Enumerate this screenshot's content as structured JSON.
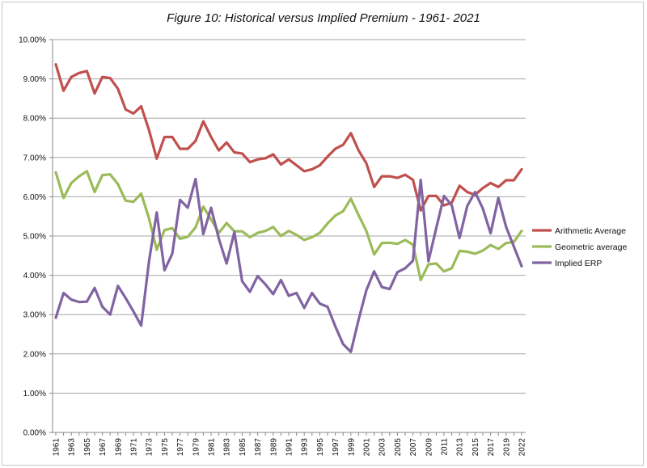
{
  "chart_data": {
    "type": "line",
    "title": "Figure 10: Historical versus Implied Premium - 1961- 2021",
    "xlabel": "",
    "ylabel": "",
    "ylim": [
      0,
      10
    ],
    "yticks": [
      "0.00%",
      "1.00%",
      "2.00%",
      "3.00%",
      "4.00%",
      "5.00%",
      "6.00%",
      "7.00%",
      "8.00%",
      "9.00%",
      "10.00%"
    ],
    "grid": true,
    "legend_position": "right",
    "categories": [
      "1961",
      "1962",
      "1963",
      "1964",
      "1965",
      "1966",
      "1967",
      "1968",
      "1969",
      "1970",
      "1971",
      "1972",
      "1973",
      "1974",
      "1975",
      "1976",
      "1977",
      "1978",
      "1979",
      "1980",
      "1981",
      "1982",
      "1983",
      "1984",
      "1985",
      "1986",
      "1987",
      "1988",
      "1989",
      "1990",
      "1991",
      "1992",
      "1993",
      "1994",
      "1995",
      "1996",
      "1997",
      "1998",
      "1999",
      "2000",
      "2001",
      "2002",
      "2003",
      "2004",
      "2005",
      "2006",
      "2007",
      "2008",
      "2009",
      "2010",
      "2011",
      "2012",
      "2013",
      "2014",
      "2015",
      "2016",
      "2017",
      "2018",
      "2019",
      "2020",
      "2022"
    ],
    "series": [
      {
        "name": "Arithmetic Average",
        "color": "#c0504d",
        "values": [
          9.37,
          8.7,
          9.05,
          9.15,
          9.2,
          8.63,
          9.05,
          9.02,
          8.75,
          8.22,
          8.12,
          8.3,
          7.7,
          6.97,
          7.52,
          7.52,
          7.22,
          7.22,
          7.42,
          7.92,
          7.52,
          7.18,
          7.38,
          7.13,
          7.1,
          6.88,
          6.95,
          6.98,
          7.08,
          6.82,
          6.95,
          6.8,
          6.65,
          6.7,
          6.8,
          7.02,
          7.22,
          7.32,
          7.62,
          7.18,
          6.85,
          6.25,
          6.52,
          6.52,
          6.48,
          6.56,
          6.43,
          5.65,
          6.02,
          6.02,
          5.78,
          5.85,
          6.28,
          6.12,
          6.05,
          6.22,
          6.35,
          6.25,
          6.42,
          6.42,
          6.7
        ]
      },
      {
        "name": "Geometric average",
        "color": "#9bbb59",
        "values": [
          6.62,
          5.97,
          6.35,
          6.52,
          6.65,
          6.12,
          6.55,
          6.57,
          6.32,
          5.9,
          5.87,
          6.08,
          5.45,
          4.65,
          5.15,
          5.2,
          4.93,
          4.98,
          5.22,
          5.75,
          5.42,
          5.08,
          5.33,
          5.12,
          5.12,
          4.97,
          5.08,
          5.13,
          5.23,
          5.0,
          5.13,
          5.03,
          4.9,
          4.97,
          5.08,
          5.32,
          5.52,
          5.63,
          5.95,
          5.53,
          5.13,
          4.53,
          4.82,
          4.83,
          4.8,
          4.9,
          4.78,
          3.88,
          4.28,
          4.3,
          4.1,
          4.18,
          4.62,
          4.6,
          4.55,
          4.63,
          4.77,
          4.67,
          4.82,
          4.85,
          5.13
        ]
      },
      {
        "name": "Implied ERP",
        "color": "#8064a2",
        "values": [
          2.92,
          3.55,
          3.38,
          3.32,
          3.33,
          3.68,
          3.2,
          3.0,
          3.73,
          3.42,
          3.08,
          2.72,
          4.35,
          5.6,
          4.13,
          4.55,
          5.92,
          5.72,
          6.45,
          5.05,
          5.72,
          4.93,
          4.3,
          5.1,
          3.85,
          3.58,
          3.98,
          3.77,
          3.52,
          3.88,
          3.48,
          3.55,
          3.17,
          3.55,
          3.28,
          3.2,
          2.7,
          2.25,
          2.05,
          2.87,
          3.62,
          4.1,
          3.7,
          3.65,
          4.08,
          4.18,
          4.37,
          6.43,
          4.36,
          5.2,
          6.02,
          5.78,
          4.95,
          5.77,
          6.12,
          5.7,
          5.07,
          5.97,
          5.23,
          4.73,
          4.23
        ]
      }
    ]
  }
}
